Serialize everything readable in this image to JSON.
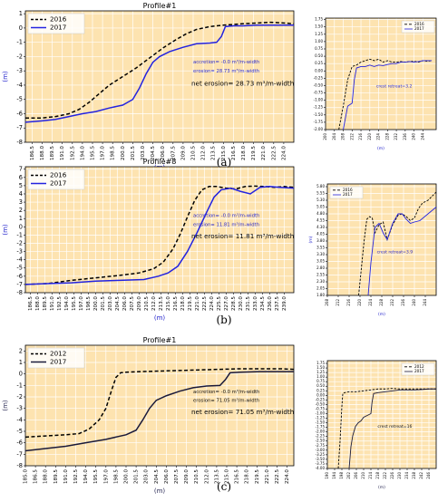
{
  "panel_labels": [
    "(a)",
    "(b)",
    "(c)"
  ],
  "chart_data": [
    {
      "id": "a-main",
      "type": "line",
      "title": "Profile#1",
      "xlabel": "(m)",
      "ylabel": "(m)",
      "xlim": [
        185.5,
        225.5
      ],
      "ylim": [
        -8,
        1.2
      ],
      "xticks": [
        "186.5",
        "188.0",
        "189.5",
        "191.0",
        "192.5",
        "194.0",
        "195.5",
        "197.0",
        "198.5",
        "200.0",
        "201.5",
        "203.0",
        "204.5",
        "206.0",
        "207.5",
        "209.0",
        "210.5",
        "212.0",
        "213.5",
        "215.0",
        "216.5",
        "218.0",
        "219.5",
        "221.0",
        "222.5",
        "224.0"
      ],
      "yticks": [
        "1",
        "0",
        "-1",
        "-2",
        "-3",
        "-4",
        "-5",
        "-6",
        "-7",
        "-8"
      ],
      "grid": true,
      "legend": "top-left",
      "annotations": [
        "accretion= -0.0 m³/m-width",
        "erosion= 28.73 m³/m-width",
        "net erosion= 28.73 m³/m-width"
      ],
      "series": [
        {
          "name": "2016",
          "style": "dashed",
          "x": [
            185.5,
            188,
            190,
            192,
            193.5,
            195,
            196.5,
            198,
            200,
            202,
            204,
            206,
            208,
            209.5,
            211,
            213,
            215,
            216.5,
            218,
            220,
            222,
            224,
            225.5
          ],
          "y": [
            -6.3,
            -6.3,
            -6.2,
            -6.0,
            -5.7,
            -5.2,
            -4.6,
            -4.0,
            -3.4,
            -2.8,
            -2.1,
            -1.4,
            -0.8,
            -0.4,
            -0.1,
            0.1,
            0.2,
            0.25,
            0.3,
            0.35,
            0.4,
            0.35,
            0.3
          ]
        },
        {
          "name": "2017",
          "style": "solid",
          "x": [
            185.5,
            188,
            190,
            192,
            194,
            196,
            198,
            200,
            201.5,
            202.5,
            203.5,
            204.5,
            205.5,
            207,
            209,
            211,
            213,
            214,
            214.7,
            215.3,
            216.5,
            218,
            220,
            222,
            224,
            225.5
          ],
          "y": [
            -6.6,
            -6.5,
            -6.4,
            -6.2,
            -6.0,
            -5.85,
            -5.6,
            -5.4,
            -5.0,
            -4.2,
            -3.2,
            -2.4,
            -2.0,
            -1.65,
            -1.35,
            -1.1,
            -1.05,
            -1.0,
            -0.6,
            0.1,
            0.15,
            0.15,
            0.2,
            0.2,
            0.2,
            0.2
          ]
        }
      ]
    },
    {
      "id": "a-inset",
      "type": "line",
      "xlabel": "(m)",
      "ylabel": "",
      "xlim": [
        200,
        250
      ],
      "ylim": [
        -2.0,
        1.8
      ],
      "xticks": [
        "200",
        "204",
        "208",
        "212",
        "216",
        "220",
        "224",
        "228",
        "232",
        "236",
        "240",
        "244"
      ],
      "yticks": [
        "1.75",
        "1.50",
        "1.25",
        "1.00",
        "0.75",
        "0.50",
        "0.25",
        "0.00",
        "-0.25",
        "-0.50",
        "-0.75",
        "-1.00",
        "-1.25",
        "-1.50",
        "-1.75",
        "-2.00"
      ],
      "grid": true,
      "legend": "top-right",
      "annotations": [
        "crest retreat=3.2"
      ],
      "series": [
        {
          "name": "2016",
          "style": "dashed",
          "x": [
            206,
            208,
            210,
            212,
            214,
            216,
            218,
            220,
            222,
            224,
            226,
            228,
            230,
            232,
            234,
            236,
            238,
            240,
            242,
            244,
            246,
            248
          ],
          "y": [
            -2.0,
            -1.2,
            -0.3,
            0.15,
            0.2,
            0.3,
            0.35,
            0.4,
            0.35,
            0.4,
            0.3,
            0.35,
            0.3,
            0.3,
            0.32,
            0.3,
            0.32,
            0.33,
            0.3,
            0.35,
            0.33,
            0.35
          ]
        },
        {
          "name": "2017",
          "style": "solid",
          "x": [
            208,
            210,
            211,
            212,
            213,
            214,
            216,
            218,
            220,
            222,
            224,
            226,
            228,
            230,
            232,
            234,
            236,
            238,
            240,
            242,
            244,
            246,
            248
          ],
          "y": [
            -2.0,
            -1.2,
            -1.15,
            -1.1,
            -0.3,
            0.1,
            0.15,
            0.15,
            0.2,
            0.15,
            0.2,
            0.18,
            0.22,
            0.25,
            0.25,
            0.3,
            0.3,
            0.32,
            0.3,
            0.32,
            0.35,
            0.35,
            0.35
          ]
        }
      ]
    },
    {
      "id": "b-main",
      "type": "line",
      "title": "Profile#8",
      "xlabel": "(m)",
      "ylabel": "(m)",
      "xlim": [
        185.5,
        241
      ],
      "ylim": [
        -8,
        7.3
      ],
      "xticks": [
        "186.5",
        "188.0",
        "189.5",
        "191.0",
        "192.5",
        "194.0",
        "195.5",
        "197.0",
        "198.5",
        "200.0",
        "201.5",
        "203.0",
        "204.5",
        "206.0",
        "207.5",
        "209.0",
        "210.5",
        "212.0",
        "213.5",
        "215.0",
        "216.5",
        "218.0",
        "219.5",
        "221.0",
        "222.5",
        "224.0",
        "225.5",
        "227.0",
        "228.5",
        "230.0",
        "231.5",
        "233.0",
        "234.5",
        "236.0",
        "237.5",
        "239.0"
      ],
      "yticks": [
        "7",
        "6",
        "5",
        "4",
        "3",
        "2",
        "1",
        "0",
        "-1",
        "-2",
        "-3",
        "-4",
        "-5",
        "-6",
        "-7",
        "-8"
      ],
      "grid": true,
      "legend": "top-left",
      "annotations": [
        "accretion= -0.0 m³/m-width",
        "erosion= 11.81 m³/m-width",
        "net erosion= 11.81 m³/m-width"
      ],
      "series": [
        {
          "name": "2016",
          "style": "dashed",
          "x": [
            185.5,
            190,
            195,
            200,
            205,
            209,
            212,
            214,
            216,
            217.5,
            219,
            220.5,
            222,
            223.5,
            225,
            227,
            229,
            231,
            233,
            235,
            237,
            239,
            241
          ],
          "y": [
            -7.0,
            -6.9,
            -6.5,
            -6.2,
            -5.9,
            -5.6,
            -5.1,
            -4.3,
            -2.7,
            -0.9,
            1.2,
            3.2,
            4.5,
            4.9,
            4.9,
            4.7,
            4.6,
            4.9,
            4.95,
            4.9,
            4.8,
            4.9,
            4.8
          ]
        },
        {
          "name": "2017",
          "style": "solid",
          "x": [
            185.5,
            190,
            195,
            200,
            205,
            210,
            213,
            215,
            217,
            219,
            221,
            223,
            224.5,
            226,
            228,
            230,
            232,
            234,
            236,
            238,
            241
          ],
          "y": [
            -7.0,
            -6.9,
            -6.8,
            -6.6,
            -6.5,
            -6.4,
            -6.0,
            -5.6,
            -4.8,
            -3.0,
            -0.7,
            1.8,
            3.6,
            4.5,
            4.7,
            4.3,
            4.0,
            4.8,
            4.9,
            4.8,
            4.7
          ]
        }
      ]
    },
    {
      "id": "b-inset",
      "type": "line",
      "xlabel": "(m)",
      "ylabel": "(m)",
      "xlim": [
        208,
        248
      ],
      "ylim": [
        1.8,
        5.9
      ],
      "xticks": [
        "208",
        "212",
        "216",
        "220",
        "224",
        "228",
        "232",
        "236",
        "240",
        "244"
      ],
      "yticks": [
        "5.80",
        "5.55",
        "5.30",
        "5.05",
        "4.80",
        "4.55",
        "4.30",
        "4.05",
        "3.80",
        "3.55",
        "3.30",
        "3.05",
        "2.80",
        "2.55",
        "2.30",
        "2.05",
        "1.80"
      ],
      "grid": true,
      "legend": "top-left",
      "annotations": [
        "crest retreat=3.9"
      ],
      "series": [
        {
          "name": "2016",
          "style": "dashed",
          "x": [
            219.5,
            220.5,
            221.5,
            222.5,
            223.5,
            224.5,
            225.5,
            227,
            228.5,
            230,
            232,
            234,
            235.5,
            237,
            238.5,
            240,
            241.5,
            243,
            245,
            248
          ],
          "y": [
            1.8,
            2.8,
            3.8,
            4.6,
            4.7,
            4.65,
            4.1,
            4.4,
            4.5,
            3.85,
            4.4,
            4.75,
            4.8,
            4.7,
            4.55,
            4.65,
            5.0,
            5.2,
            5.3,
            5.6
          ]
        },
        {
          "name": "2017",
          "style": "solid",
          "x": [
            223,
            224,
            225.5,
            227,
            228.5,
            230,
            232,
            234,
            235.5,
            237,
            238.5,
            240,
            242,
            245,
            248
          ],
          "y": [
            1.8,
            3.0,
            4.3,
            4.45,
            4.1,
            3.85,
            4.45,
            4.8,
            4.8,
            4.6,
            4.45,
            4.5,
            4.55,
            4.8,
            5.05
          ]
        }
      ]
    },
    {
      "id": "c-main",
      "type": "line",
      "title": "Profile#1",
      "xlabel": "(m)",
      "ylabel": "(m)",
      "xlim": [
        185,
        225
      ],
      "ylim": [
        -8,
        2.5
      ],
      "xticks": [
        "185.0",
        "186.5",
        "188.0",
        "189.5",
        "191.0",
        "192.5",
        "194.0",
        "195.5",
        "197.0",
        "198.5",
        "200.0",
        "201.5",
        "203.0",
        "204.5",
        "206.0",
        "207.5",
        "209.0",
        "210.5",
        "212.0",
        "213.5",
        "215.0",
        "216.5",
        "218.0",
        "219.5",
        "221.0",
        "222.5",
        "224.0"
      ],
      "yticks": [
        "2",
        "1",
        "0",
        "-1",
        "-2",
        "-3",
        "-4",
        "-5",
        "-6",
        "-7",
        "-8"
      ],
      "grid": true,
      "legend": "top-left",
      "annotations": [
        "accretion= -0.0 m³/m-width",
        "erosion= 71.05 m³/m-width",
        "net erosion= 71.05 m³/m-width"
      ],
      "series": [
        {
          "name": "2012",
          "style": "dashed",
          "x": [
            185,
            188,
            191,
            193,
            194.5,
            196,
            197,
            197.8,
            198.5,
            199.2,
            200,
            202,
            205,
            208,
            211,
            214,
            217,
            220,
            223,
            225
          ],
          "y": [
            -5.5,
            -5.4,
            -5.3,
            -5.2,
            -4.8,
            -4.0,
            -3.0,
            -1.5,
            -0.3,
            0.1,
            0.15,
            0.2,
            0.25,
            0.3,
            0.35,
            0.4,
            0.45,
            0.45,
            0.45,
            0.4
          ]
        },
        {
          "name": "2017",
          "style": "solid",
          "x": [
            185,
            188,
            191,
            194,
            197,
            200,
            201.5,
            202.5,
            203.5,
            204.5,
            206,
            208,
            210,
            212,
            214,
            214.8,
            215.5,
            217,
            220,
            223,
            225
          ],
          "y": [
            -6.7,
            -6.5,
            -6.3,
            -6.0,
            -5.7,
            -5.3,
            -4.9,
            -4.0,
            -3.0,
            -2.3,
            -1.9,
            -1.5,
            -1.2,
            -1.05,
            -1.0,
            -0.5,
            0.1,
            0.15,
            0.2,
            0.2,
            0.2
          ]
        }
      ]
    },
    {
      "id": "c-inset",
      "type": "line",
      "xlabel": "(m)",
      "ylabel": "",
      "xlim": [
        190,
        250
      ],
      "ylim": [
        -4.0,
        1.9
      ],
      "xticks": [
        "190",
        "194",
        "198",
        "202",
        "206",
        "210",
        "214",
        "218",
        "222",
        "226",
        "230",
        "234",
        "238",
        "242",
        "246"
      ],
      "yticks": [
        "1.75",
        "1.50",
        "1.25",
        "1.00",
        "0.75",
        "0.50",
        "0.25",
        "0.00",
        "-0.25",
        "-0.50",
        "-0.75",
        "-1.00",
        "-1.25",
        "-1.50",
        "-1.75",
        "-2.00",
        "-2.25",
        "-2.50",
        "-2.75",
        "-3.00",
        "-3.25",
        "-3.50",
        "-3.75",
        "-4.00"
      ],
      "grid": true,
      "legend": "top-right",
      "annotations": [
        "crest retreat=16"
      ],
      "series": [
        {
          "name": "2012",
          "style": "dashed",
          "x": [
            196,
            197,
            198,
            198.5,
            199.5,
            202,
            206,
            210,
            214,
            218,
            222,
            226,
            230,
            234,
            238,
            242,
            246,
            250
          ],
          "y": [
            -4.0,
            -2.5,
            -0.6,
            0.1,
            0.15,
            0.2,
            0.2,
            0.25,
            0.3,
            0.35,
            0.35,
            0.38,
            0.35,
            0.35,
            0.35,
            0.35,
            0.35,
            0.35
          ]
        },
        {
          "name": "2017",
          "style": "solid",
          "x": [
            202,
            203,
            204,
            205.5,
            207,
            208.5,
            210,
            212,
            214,
            214.6,
            215.5,
            218,
            222,
            226,
            230,
            234,
            238,
            242,
            246,
            250
          ],
          "y": [
            -4.0,
            -2.8,
            -2.2,
            -1.7,
            -1.5,
            -1.4,
            -1.2,
            -1.1,
            -1.0,
            -0.4,
            0.1,
            0.15,
            0.2,
            0.25,
            0.3,
            0.3,
            0.3,
            0.32,
            0.35,
            0.35
          ]
        }
      ]
    }
  ]
}
